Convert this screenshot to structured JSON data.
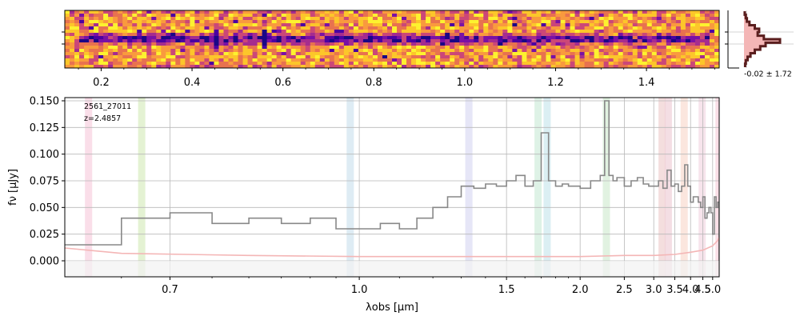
{
  "chart_data": [
    {
      "type": "heatmap",
      "panel": "2d-spectrum",
      "x_ticks": [
        "0.2",
        "0.4",
        "0.6",
        "0.8",
        "1.0",
        "1.2",
        "1.4"
      ],
      "x_tick_values": [
        0.2,
        0.4,
        0.6,
        0.8,
        1.0,
        1.2,
        1.4
      ],
      "xlim": [
        0.12,
        1.56
      ],
      "colormap": "plasma"
    },
    {
      "type": "line",
      "panel": "profile",
      "label": "-0.02 ± 1.72",
      "profile": [
        0.02,
        0.05,
        0.08,
        0.15,
        0.3,
        0.42,
        0.38,
        0.55,
        1.0,
        0.6,
        0.45,
        0.3,
        0.18,
        0.1,
        0.05,
        0.03
      ],
      "fill_color": "#f4b6b6",
      "line_color": "#5a1e1e"
    },
    {
      "type": "line",
      "panel": "1d-spectrum",
      "annotation": {
        "id": "2561_27011",
        "redshift": "z=2.4857"
      },
      "xlabel": "λobs [μm]",
      "ylabel": "fν [μJy]",
      "x_scale": "reciprocal",
      "xlim": [
        0.6,
        5.4
      ],
      "ylim": [
        -0.015,
        0.153
      ],
      "x_ticks": [
        "0.7",
        "1.0",
        "1.5",
        "2.0",
        "2.5",
        "3.0",
        "3.5",
        "4.0",
        "4.5",
        "5.0"
      ],
      "x_tick_values": [
        0.7,
        1.0,
        1.5,
        2.0,
        2.5,
        3.0,
        3.5,
        4.0,
        4.5,
        5.0
      ],
      "y_ticks": [
        "0.000",
        "0.025",
        "0.050",
        "0.075",
        "0.100",
        "0.125",
        "0.150"
      ],
      "y_tick_values": [
        0.0,
        0.025,
        0.05,
        0.075,
        0.1,
        0.125,
        0.15
      ],
      "grid": true,
      "series": [
        {
          "color": "#888888",
          "x": [
            0.6,
            0.65,
            0.7,
            0.75,
            0.8,
            0.85,
            0.9,
            0.95,
            1.0,
            1.05,
            1.1,
            1.15,
            1.2,
            1.25,
            1.3,
            1.35,
            1.4,
            1.45,
            1.5,
            1.55,
            1.6,
            1.65,
            1.7,
            1.75,
            1.8,
            1.85,
            1.9,
            2.0,
            2.1,
            2.2,
            2.25,
            2.3,
            2.35,
            2.4,
            2.5,
            2.6,
            2.7,
            2.8,
            2.9,
            3.0,
            3.1,
            3.2,
            3.3,
            3.4,
            3.5,
            3.6,
            3.7,
            3.8,
            3.9,
            4.0,
            4.1,
            4.2,
            4.3,
            4.4,
            4.5,
            4.6,
            4.7,
            4.8,
            4.9,
            5.0,
            5.1,
            5.2,
            5.3,
            5.4
          ],
          "y": [
            0.015,
            0.04,
            0.045,
            0.035,
            0.04,
            0.035,
            0.04,
            0.03,
            0.03,
            0.035,
            0.03,
            0.04,
            0.05,
            0.06,
            0.07,
            0.068,
            0.072,
            0.07,
            0.075,
            0.08,
            0.07,
            0.075,
            0.12,
            0.075,
            0.07,
            0.072,
            0.07,
            0.068,
            0.075,
            0.08,
            0.15,
            0.08,
            0.075,
            0.078,
            0.07,
            0.075,
            0.078,
            0.072,
            0.07,
            0.07,
            0.075,
            0.068,
            0.085,
            0.07,
            0.072,
            0.065,
            0.07,
            0.09,
            0.07,
            0.055,
            0.06,
            0.06,
            0.055,
            0.05,
            0.06,
            0.04,
            0.045,
            0.05,
            0.045,
            0.025,
            0.06,
            0.05,
            0.055,
            0.0
          ]
        },
        {
          "color": "#f4b6b6",
          "x": [
            0.6,
            0.65,
            0.8,
            1.0,
            1.5,
            2.0,
            2.5,
            3.0,
            3.5,
            4.0,
            4.5,
            5.0,
            5.3,
            5.4
          ],
          "y": [
            0.012,
            0.007,
            0.005,
            0.004,
            0.004,
            0.004,
            0.005,
            0.005,
            0.006,
            0.008,
            0.01,
            0.014,
            0.019,
            0.022
          ]
        }
      ],
      "line_bands": [
        {
          "x": 0.62,
          "color": "#f8d0e0"
        },
        {
          "x": 0.67,
          "color": "#d8ecc0"
        },
        {
          "x": 0.98,
          "color": "#d0e4f0"
        },
        {
          "x": 1.33,
          "color": "#dcdcf4"
        },
        {
          "x": 1.68,
          "color": "#d0ecdc"
        },
        {
          "x": 1.74,
          "color": "#cce8ee"
        },
        {
          "x": 2.27,
          "color": "#d4ecd4"
        },
        {
          "x": 3.18,
          "color": "#f0d0d0"
        },
        {
          "x": 3.33,
          "color": "#f0d0d8"
        },
        {
          "x": 3.78,
          "color": "#fadcd0"
        },
        {
          "x": 4.47,
          "color": "#f4d8e4"
        },
        {
          "x": 5.39,
          "color": "#f8d0dc"
        }
      ]
    }
  ]
}
